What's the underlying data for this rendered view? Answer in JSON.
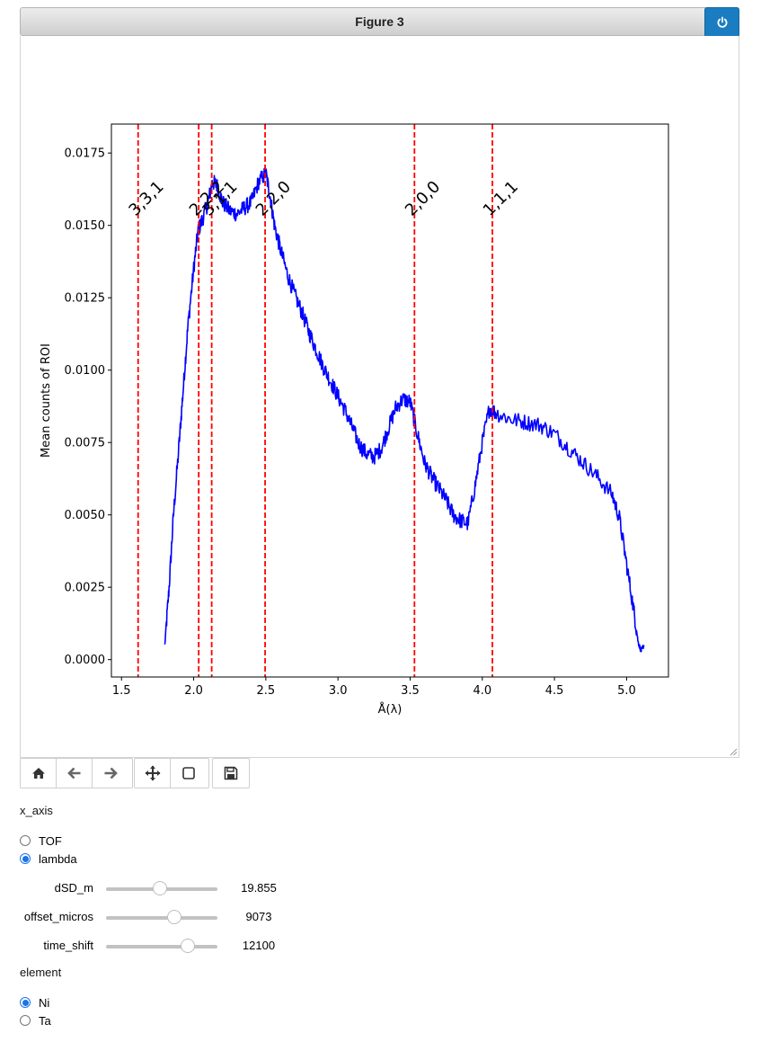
{
  "figure": {
    "title": "Figure 3"
  },
  "toolbar": {
    "buttons": [
      "home-icon",
      "back-arrow-icon",
      "forward-arrow-icon",
      "move-icon",
      "zoom-rect-icon",
      "save-disk-icon"
    ]
  },
  "controls": {
    "x_axis_label": "x_axis",
    "x_axis_options": [
      {
        "label": "TOF",
        "selected": false
      },
      {
        "label": "lambda",
        "selected": true
      }
    ],
    "sliders": [
      {
        "label": "dSD_m",
        "value": "19.855",
        "fraction": 0.48
      },
      {
        "label": "offset_micros",
        "value": "9073",
        "fraction": 0.61
      },
      {
        "label": "time_shift",
        "value": "12100",
        "fraction": 0.73
      }
    ],
    "element_label": "element",
    "element_options": [
      {
        "label": "Ni",
        "selected": true
      },
      {
        "label": "Ta",
        "selected": false
      }
    ]
  },
  "chart_data": {
    "type": "line",
    "xlabel": "Å(λ)",
    "ylabel": "Mean counts of ROI",
    "xlim": [
      1.43,
      5.29
    ],
    "ylim": [
      -0.0006,
      0.0185
    ],
    "xticks": [
      "1.5",
      "2.0",
      "2.5",
      "3.0",
      "3.5",
      "4.0",
      "4.5",
      "5.0"
    ],
    "yticks": [
      "0.0000",
      "0.0025",
      "0.0050",
      "0.0075",
      "0.0100",
      "0.0125",
      "0.0150",
      "0.0175"
    ],
    "series_color": "#0000ff",
    "line_color_markers": "#ff0000",
    "series": [
      {
        "x": [
          1.8,
          1.83,
          1.86,
          1.9,
          1.93,
          1.96,
          2.0,
          2.03,
          2.06,
          2.1,
          2.13,
          2.16,
          2.2,
          2.25,
          2.3,
          2.35,
          2.4,
          2.45,
          2.5,
          2.53,
          2.56,
          2.6,
          2.65,
          2.7,
          2.75,
          2.8,
          2.85,
          2.9,
          2.95,
          3.0,
          3.05,
          3.1,
          3.15,
          3.2,
          3.25,
          3.3,
          3.35,
          3.4,
          3.45,
          3.5,
          3.55,
          3.6,
          3.65,
          3.7,
          3.75,
          3.8,
          3.85,
          3.9,
          3.95,
          4.0,
          4.05,
          4.1,
          4.2,
          4.3,
          4.4,
          4.5,
          4.6,
          4.7,
          4.8,
          4.9,
          4.95,
          5.0,
          5.05,
          5.08,
          5.1,
          5.12
        ],
        "y": [
          0.0005,
          0.0025,
          0.005,
          0.0075,
          0.0095,
          0.0115,
          0.0135,
          0.0148,
          0.0152,
          0.0158,
          0.0165,
          0.0164,
          0.0158,
          0.0155,
          0.0154,
          0.0156,
          0.0158,
          0.0165,
          0.0168,
          0.016,
          0.015,
          0.0142,
          0.0133,
          0.0126,
          0.012,
          0.0113,
          0.0107,
          0.0101,
          0.0096,
          0.0091,
          0.0086,
          0.008,
          0.0074,
          0.0071,
          0.007,
          0.0073,
          0.008,
          0.0087,
          0.009,
          0.0089,
          0.0078,
          0.0068,
          0.0063,
          0.0059,
          0.0055,
          0.005,
          0.0048,
          0.0047,
          0.006,
          0.0075,
          0.0087,
          0.0085,
          0.0083,
          0.0082,
          0.0081,
          0.0078,
          0.0073,
          0.0068,
          0.0063,
          0.0057,
          0.0049,
          0.0033,
          0.0017,
          0.0006,
          0.0003,
          0.0005
        ]
      }
    ],
    "vlines": [
      {
        "x": 1.615,
        "label": "3,3,1"
      },
      {
        "x": 2.035,
        "label": "2,2,2"
      },
      {
        "x": 2.125,
        "label": "3,1,1"
      },
      {
        "x": 2.495,
        "label": "2,2,0"
      },
      {
        "x": 3.53,
        "label": "2,0,0"
      },
      {
        "x": 4.07,
        "label": "1,1,1"
      }
    ]
  }
}
